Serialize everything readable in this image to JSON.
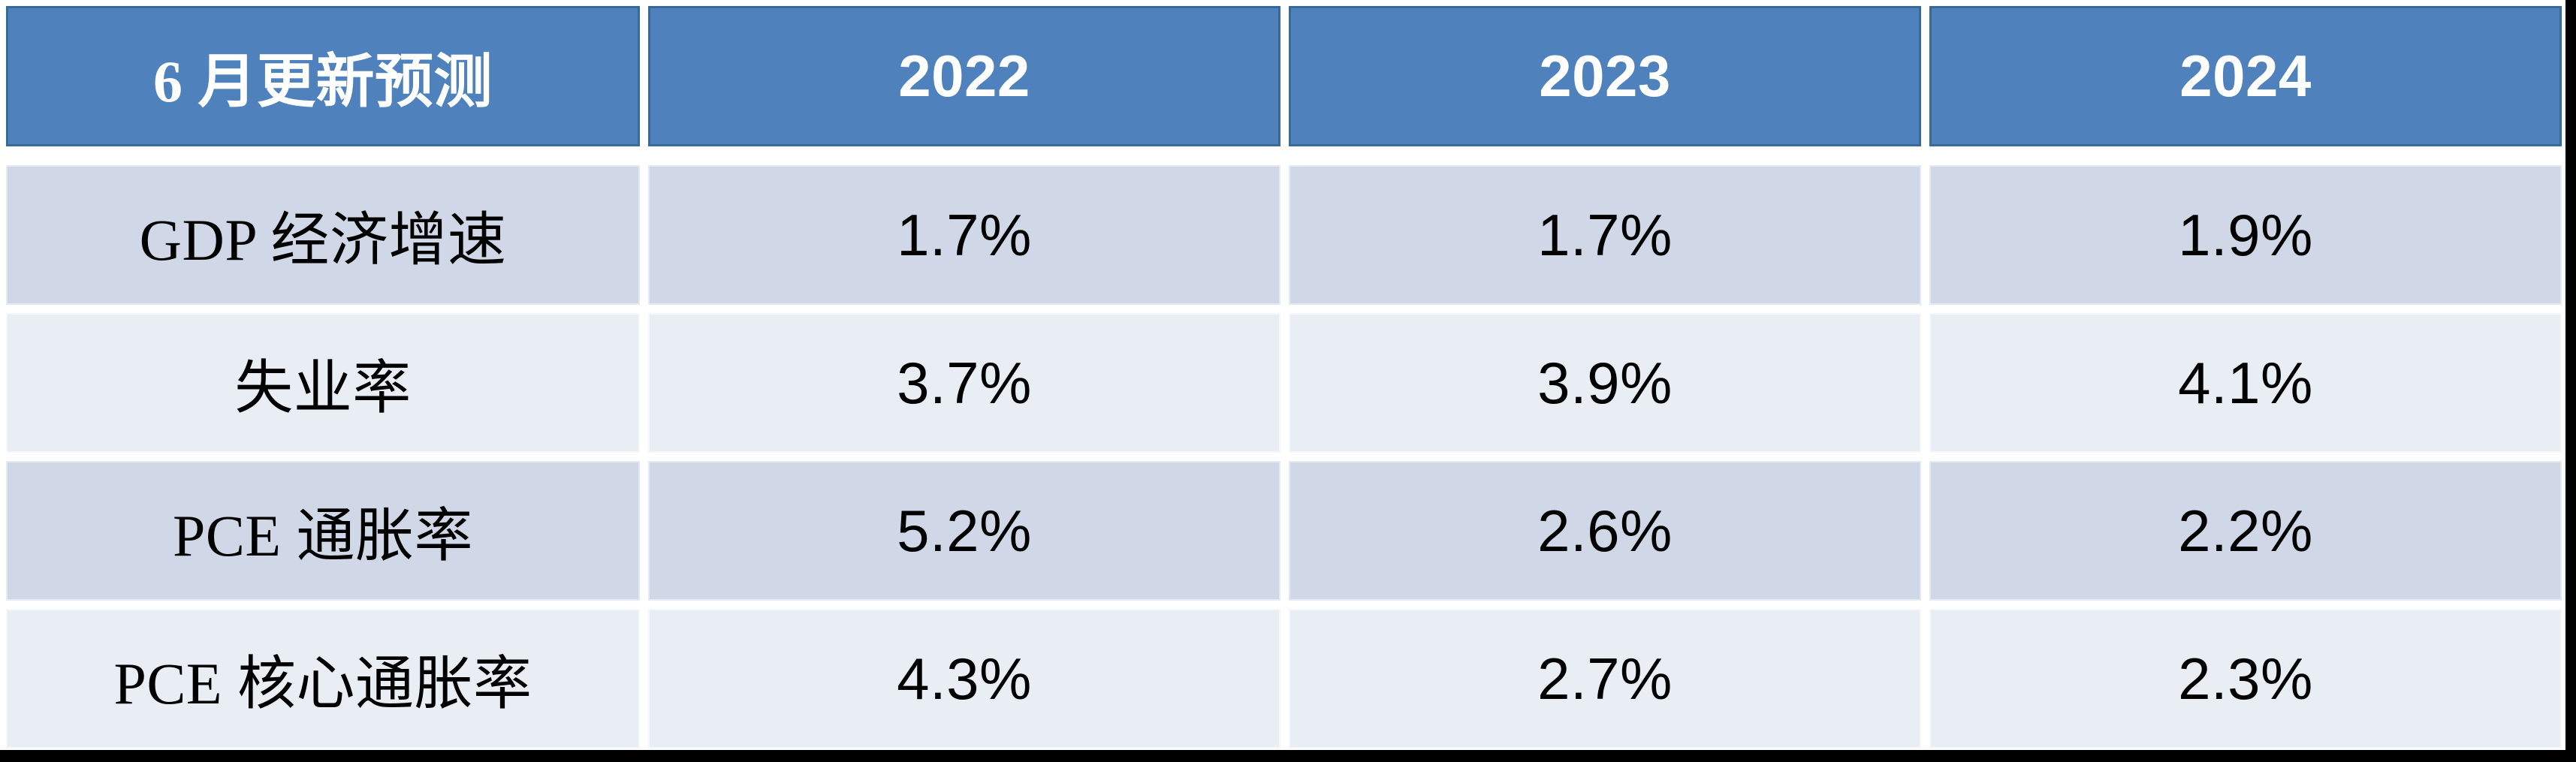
{
  "colors": {
    "header_bg": "#4F81BD",
    "header_border": "#39689B",
    "header_text": "#FFFFFF",
    "row_odd_bg": "#D0D7E7",
    "row_even_bg": "#E9EDF4",
    "body_text": "#000000",
    "gap_white": "#FFFFFF",
    "frame_black": "#000000"
  },
  "chart_data": {
    "type": "table",
    "title": "6 月更新预测",
    "header_label": "6 月更新预测",
    "columns": [
      "2022",
      "2023",
      "2024"
    ],
    "rows": [
      {
        "label": "GDP 经济增速",
        "values": [
          "1.7%",
          "1.7%",
          "1.9%"
        ]
      },
      {
        "label": "失业率",
        "values": [
          "3.7%",
          "3.9%",
          "4.1%"
        ]
      },
      {
        "label": "PCE 通胀率",
        "values": [
          "5.2%",
          "2.6%",
          "2.2%"
        ]
      },
      {
        "label": "PCE 核心通胀率",
        "values": [
          "4.3%",
          "2.7%",
          "2.3%"
        ]
      }
    ],
    "banding": "alternating-rows",
    "grid": false,
    "legend_position": "none"
  }
}
